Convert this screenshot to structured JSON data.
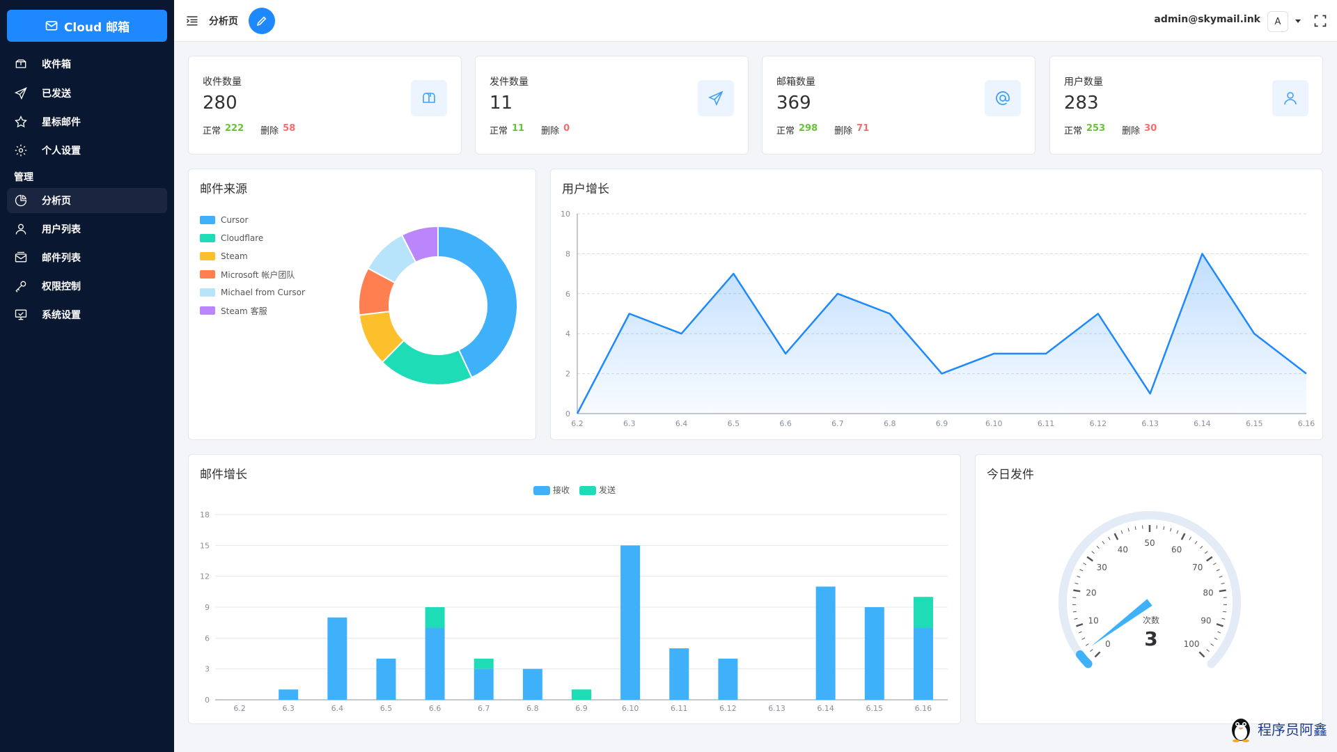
{
  "brand": {
    "name": "Cloud 邮箱"
  },
  "sidebar": {
    "items": [
      {
        "label": "收件箱",
        "icon": "inbox-icon"
      },
      {
        "label": "已发送",
        "icon": "send-icon"
      },
      {
        "label": "星标邮件",
        "icon": "star-icon"
      },
      {
        "label": "个人设置",
        "icon": "gear-icon"
      }
    ],
    "group_label": "管理",
    "admin_items": [
      {
        "label": "分析页",
        "icon": "pie-chart-icon",
        "active": true
      },
      {
        "label": "用户列表",
        "icon": "user-icon"
      },
      {
        "label": "邮件列表",
        "icon": "mail-list-icon"
      },
      {
        "label": "权限控制",
        "icon": "key-icon"
      },
      {
        "label": "系统设置",
        "icon": "monitor-icon"
      }
    ]
  },
  "header": {
    "title": "分析页",
    "user_email": "admin@skymail.ink",
    "avatar_letter": "A"
  },
  "stats": [
    {
      "title": "收件数量",
      "value": "280",
      "normal_label": "正常",
      "normal": "222",
      "deleted_label": "删除",
      "deleted": "58",
      "icon": "mailbox-icon"
    },
    {
      "title": "发件数量",
      "value": "11",
      "normal_label": "正常",
      "normal": "11",
      "deleted_label": "删除",
      "deleted": "0",
      "icon": "send-icon"
    },
    {
      "title": "邮箱数量",
      "value": "369",
      "normal_label": "正常",
      "normal": "298",
      "deleted_label": "删除",
      "deleted": "71",
      "icon": "at-icon"
    },
    {
      "title": "用户数量",
      "value": "283",
      "normal_label": "正常",
      "normal": "253",
      "deleted_label": "删除",
      "deleted": "30",
      "icon": "user-icon"
    }
  ],
  "panels": {
    "source_title": "邮件来源",
    "user_growth_title": "用户增长",
    "mail_growth_title": "邮件增长",
    "today_title": "今日发件"
  },
  "chart_data": [
    {
      "type": "pie",
      "title": "邮件来源",
      "legend_position": "top-left",
      "slices": [
        {
          "name": "Cursor",
          "value": 40,
          "color": "#3fb1fb"
        },
        {
          "name": "Cloudflare",
          "value": 18,
          "color": "#1ddcb6"
        },
        {
          "name": "Steam",
          "value": 10,
          "color": "#fdc02d"
        },
        {
          "name": "Microsoft 帐户团队",
          "value": 9,
          "color": "#ff7f50"
        },
        {
          "name": "Michael from Cursor",
          "value": 9,
          "color": "#b7e3fb"
        },
        {
          "name": "Steam 客服",
          "value": 7,
          "color": "#bb86fc"
        }
      ]
    },
    {
      "type": "area",
      "title": "用户增长",
      "categories": [
        "6.2",
        "6.3",
        "6.4",
        "6.5",
        "6.6",
        "6.7",
        "6.8",
        "6.9",
        "6.10",
        "6.11",
        "6.12",
        "6.13",
        "6.14",
        "6.15",
        "6.16"
      ],
      "values": [
        0,
        5,
        4,
        7,
        3,
        6,
        5,
        2,
        3,
        3,
        5,
        1,
        8,
        4,
        2
      ],
      "ylim": [
        0,
        10
      ],
      "yticks": [
        0,
        2,
        4,
        6,
        8,
        10
      ],
      "grid": true,
      "color": "#1e88ff"
    },
    {
      "type": "bar",
      "title": "邮件增长",
      "stacked": true,
      "legend_position": "top-center",
      "categories": [
        "6.2",
        "6.3",
        "6.4",
        "6.5",
        "6.6",
        "6.7",
        "6.8",
        "6.9",
        "6.10",
        "6.11",
        "6.12",
        "6.13",
        "6.14",
        "6.15",
        "6.16"
      ],
      "series": [
        {
          "name": "接收",
          "color": "#3fb1fb",
          "values": [
            0,
            1,
            8,
            4,
            7,
            3,
            3,
            0,
            15,
            5,
            4,
            0,
            11,
            9,
            7
          ]
        },
        {
          "name": "发送",
          "color": "#1ddcb6",
          "values": [
            0,
            0,
            0,
            0,
            2,
            1,
            0,
            1,
            0,
            0,
            0,
            0,
            0,
            0,
            3
          ]
        }
      ],
      "ylim": [
        0,
        18
      ],
      "yticks": [
        0,
        3,
        6,
        9,
        12,
        15,
        18
      ],
      "grid": true
    },
    {
      "type": "gauge",
      "title": "今日发件",
      "min": 0,
      "max": 100,
      "ticks": [
        0,
        10,
        20,
        30,
        40,
        50,
        60,
        70,
        80,
        90,
        100
      ],
      "label": "次数",
      "value": 3,
      "color": "#3fb1fb"
    }
  ],
  "watermark": {
    "text": "程序员阿鑫"
  }
}
